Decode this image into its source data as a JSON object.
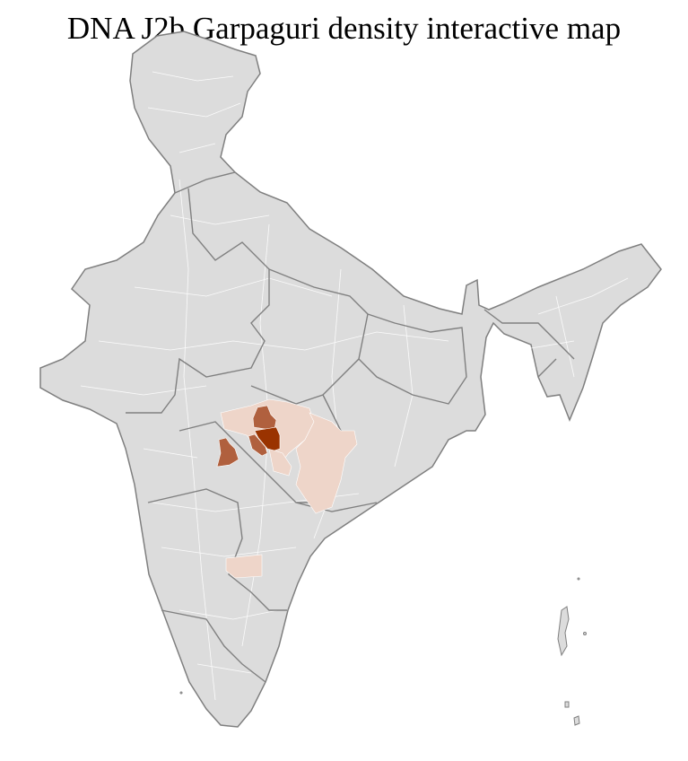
{
  "title": "DNA J2b Garpaguri density interactive map",
  "map": {
    "colors": {
      "land": "#dcdcdc",
      "district_border": "#ffffff",
      "state_border": "#7f7f7f",
      "density_low": "#eed5c9",
      "density_medium": "#b0603e",
      "density_high": "#9a3300"
    }
  }
}
